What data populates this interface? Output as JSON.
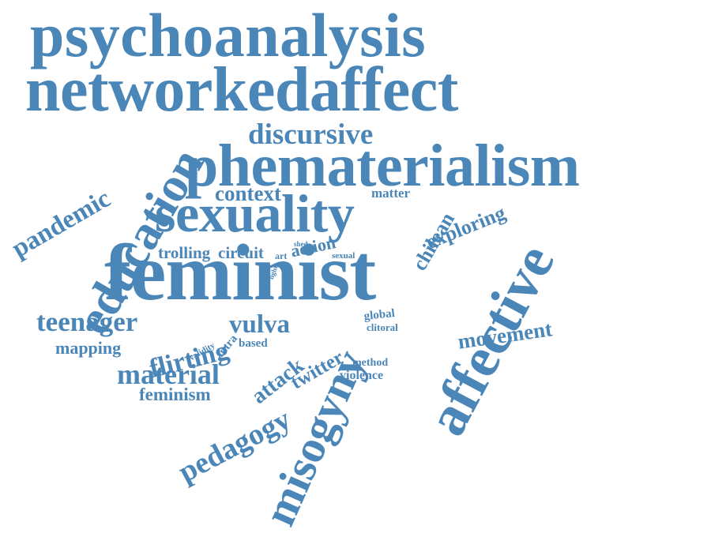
{
  "color": "#4a86b8",
  "words": [
    {
      "id": "psychoanalysis",
      "text": "psychoanalysis"
    },
    {
      "id": "networkedaffect",
      "text": "networkedaffect"
    },
    {
      "id": "phematerialism",
      "text": "phematerialism"
    },
    {
      "id": "discursive",
      "text": "discursive"
    },
    {
      "id": "education",
      "text": "education"
    },
    {
      "id": "sexuality",
      "text": "sexuality"
    },
    {
      "id": "context",
      "text": "context"
    },
    {
      "id": "matter",
      "text": "matter"
    },
    {
      "id": "pandemic",
      "text": "pandemic"
    },
    {
      "id": "chilean",
      "text": "chilean"
    },
    {
      "id": "exploring",
      "text": "exploring"
    },
    {
      "id": "affective",
      "text": "affective"
    },
    {
      "id": "feminist",
      "text": "feminist"
    },
    {
      "id": "trolling",
      "text": "trolling"
    },
    {
      "id": "circuit",
      "text": "circuit"
    },
    {
      "id": "art",
      "text": "art"
    },
    {
      "id": "shed",
      "text": "shed"
    },
    {
      "id": "action",
      "text": "action"
    },
    {
      "id": "sexual",
      "text": "sexual"
    },
    {
      "id": "light",
      "text": "light"
    },
    {
      "id": "teenager",
      "text": "teenager"
    },
    {
      "id": "flirting",
      "text": "flirting"
    },
    {
      "id": "vulva",
      "text": "vulva"
    },
    {
      "id": "global",
      "text": "global"
    },
    {
      "id": "clitoral",
      "text": "clitoral"
    },
    {
      "id": "movement",
      "text": "movement"
    },
    {
      "id": "mapping",
      "text": "mapping"
    },
    {
      "id": "validity",
      "text": "validity"
    },
    {
      "id": "intra",
      "text": "intra"
    },
    {
      "id": "based",
      "text": "based"
    },
    {
      "id": "material",
      "text": "material"
    },
    {
      "id": "attack",
      "text": "attack"
    },
    {
      "id": "twitter",
      "text": "twitter"
    },
    {
      "id": "method",
      "text": "method"
    },
    {
      "id": "violence",
      "text": "violence"
    },
    {
      "id": "misogyny",
      "text": "misogyny"
    },
    {
      "id": "feminism",
      "text": "feminism"
    },
    {
      "id": "pedagogy",
      "text": "pedagogy"
    }
  ]
}
